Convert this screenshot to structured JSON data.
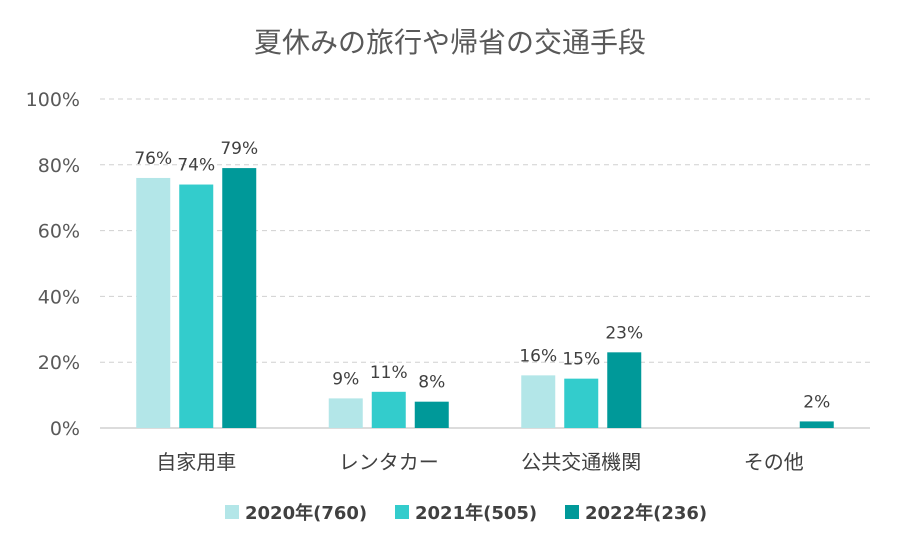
{
  "chart_data": {
    "type": "bar",
    "title": "夏休みの旅行や帰省の交通手段",
    "categories": [
      "自家用車",
      "レンタカー",
      "公共交通機関",
      "その他"
    ],
    "series": [
      {
        "name": "2020年(760)",
        "color": "#b3e6e8",
        "values": [
          76,
          9,
          16,
          null
        ],
        "labels": [
          "76%",
          "9%",
          "16%",
          ""
        ]
      },
      {
        "name": "2021年(505)",
        "color": "#33cccc",
        "values": [
          74,
          11,
          15,
          null
        ],
        "labels": [
          "74%",
          "11%",
          "15%",
          ""
        ]
      },
      {
        "name": "2022年(236)",
        "color": "#009999",
        "values": [
          79,
          8,
          23,
          2
        ],
        "labels": [
          "79%",
          "8%",
          "23%",
          "2%"
        ]
      }
    ],
    "ylim": [
      0,
      100
    ],
    "yticks": [
      "0%",
      "20%",
      "40%",
      "60%",
      "80%",
      "100%"
    ],
    "grid": true,
    "legend_position": "bottom",
    "xlabel": "",
    "ylabel": ""
  }
}
